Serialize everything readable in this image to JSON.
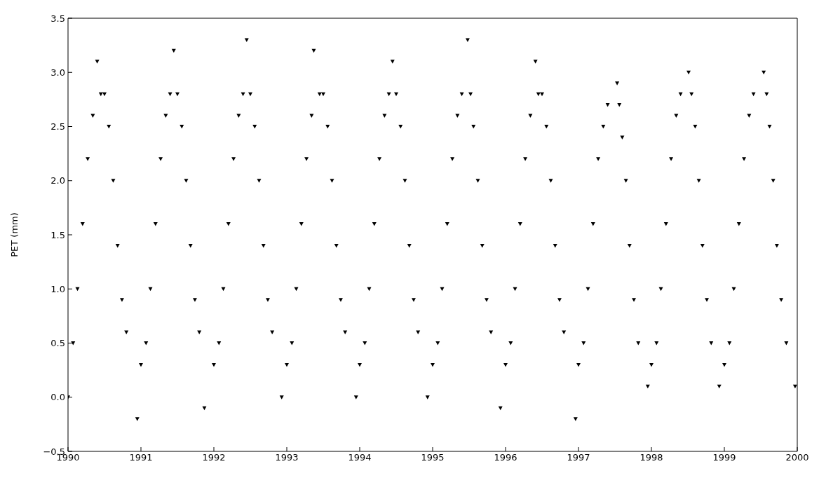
{
  "chart_data": {
    "type": "scatter",
    "ylabel": "PET (mm)",
    "marker": "triangle",
    "color": "#000000",
    "x": [
      1990.0,
      1990.07,
      1990.13,
      1990.2,
      1990.27,
      1990.34,
      1990.4,
      1990.45,
      1990.5,
      1990.56,
      1990.62,
      1990.68,
      1990.74,
      1990.8,
      1990.95,
      1991.0,
      1991.07,
      1991.13,
      1991.2,
      1991.27,
      1991.34,
      1991.4,
      1991.45,
      1991.5,
      1991.56,
      1991.62,
      1991.68,
      1991.74,
      1991.8,
      1991.87,
      1992.0,
      1992.07,
      1992.13,
      1992.2,
      1992.27,
      1992.34,
      1992.4,
      1992.45,
      1992.5,
      1992.56,
      1992.62,
      1992.68,
      1992.74,
      1992.8,
      1992.93,
      1993.0,
      1993.07,
      1993.13,
      1993.2,
      1993.27,
      1993.34,
      1993.37,
      1993.45,
      1993.5,
      1993.56,
      1993.62,
      1993.68,
      1993.74,
      1993.8,
      1993.95,
      1994.0,
      1994.07,
      1994.13,
      1994.2,
      1994.27,
      1994.34,
      1994.4,
      1994.45,
      1994.5,
      1994.56,
      1994.62,
      1994.68,
      1994.74,
      1994.8,
      1994.93,
      1995.0,
      1995.07,
      1995.13,
      1995.2,
      1995.27,
      1995.34,
      1995.4,
      1995.48,
      1995.52,
      1995.56,
      1995.62,
      1995.68,
      1995.74,
      1995.8,
      1995.93,
      1996.0,
      1996.07,
      1996.13,
      1996.2,
      1996.27,
      1996.34,
      1996.41,
      1996.45,
      1996.5,
      1996.56,
      1996.62,
      1996.68,
      1996.74,
      1996.8,
      1996.96,
      1997.0,
      1997.07,
      1997.13,
      1997.2,
      1997.27,
      1997.34,
      1997.4,
      1997.53,
      1997.56,
      1997.6,
      1997.65,
      1997.7,
      1997.76,
      1997.82,
      1997.95,
      1998.0,
      1998.07,
      1998.13,
      1998.2,
      1998.27,
      1998.34,
      1998.4,
      1998.51,
      1998.55,
      1998.6,
      1998.65,
      1998.7,
      1998.76,
      1998.82,
      1998.93,
      1999.0,
      1999.07,
      1999.13,
      1999.2,
      1999.27,
      1999.34,
      1999.4,
      1999.54,
      1999.58,
      1999.62,
      1999.67,
      1999.72,
      1999.78,
      1999.85,
      1999.97
    ],
    "values": [
      0.0,
      0.5,
      1.0,
      1.6,
      2.2,
      2.6,
      3.1,
      2.8,
      2.8,
      2.5,
      2.0,
      1.4,
      0.9,
      0.6,
      -0.2,
      0.3,
      0.5,
      1.0,
      1.6,
      2.2,
      2.6,
      2.8,
      3.2,
      2.8,
      2.5,
      2.0,
      1.4,
      0.9,
      0.6,
      -0.1,
      0.3,
      0.5,
      1.0,
      1.6,
      2.2,
      2.6,
      2.8,
      3.3,
      2.8,
      2.5,
      2.0,
      1.4,
      0.9,
      0.6,
      0.0,
      0.3,
      0.5,
      1.0,
      1.6,
      2.2,
      2.6,
      3.2,
      2.8,
      2.8,
      2.5,
      2.0,
      1.4,
      0.9,
      0.6,
      0.0,
      0.3,
      0.5,
      1.0,
      1.6,
      2.2,
      2.6,
      2.8,
      3.1,
      2.8,
      2.5,
      2.0,
      1.4,
      0.9,
      0.6,
      0.0,
      0.3,
      0.5,
      1.0,
      1.6,
      2.2,
      2.6,
      2.8,
      3.3,
      2.8,
      2.5,
      2.0,
      1.4,
      0.9,
      0.6,
      -0.1,
      0.3,
      0.5,
      1.0,
      1.6,
      2.2,
      2.6,
      3.1,
      2.8,
      2.8,
      2.5,
      2.0,
      1.4,
      0.9,
      0.6,
      -0.2,
      0.3,
      0.5,
      1.0,
      1.6,
      2.2,
      2.5,
      2.7,
      2.9,
      2.7,
      2.4,
      2.0,
      1.4,
      0.9,
      0.5,
      0.1,
      0.3,
      0.5,
      1.0,
      1.6,
      2.2,
      2.6,
      2.8,
      3.0,
      2.8,
      2.5,
      2.0,
      1.4,
      0.9,
      0.5,
      0.1,
      0.3,
      0.5,
      1.0,
      1.6,
      2.2,
      2.6,
      2.8,
      3.0,
      2.8,
      2.5,
      2.0,
      1.4,
      0.9,
      0.5,
      0.1
    ],
    "xlim": [
      1990,
      2000
    ],
    "xticks": [
      1990,
      1991,
      1992,
      1993,
      1994,
      1995,
      1996,
      1997,
      1998,
      1999,
      2000
    ],
    "ylim": [
      -0.5,
      3.5
    ],
    "yticks": [
      {
        "value": -0.5,
        "label": "−0.5"
      },
      {
        "value": 0,
        "label": "0.0"
      },
      0.5,
      {
        "value": 1,
        "label": "1.0"
      },
      1.5,
      {
        "value": 2,
        "label": "2.0"
      },
      2.5,
      {
        "value": 3,
        "label": "3.0"
      },
      3.5
    ]
  }
}
